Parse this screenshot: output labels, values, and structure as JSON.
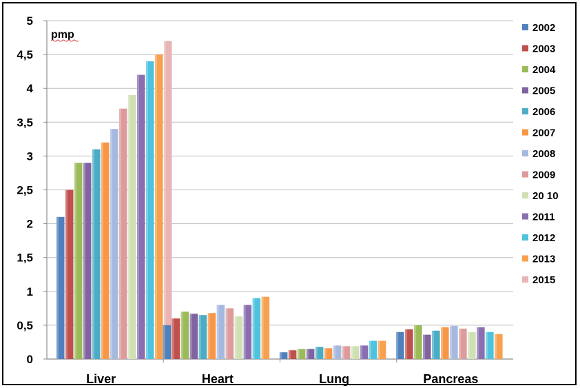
{
  "chart_data": {
    "type": "bar",
    "unit_label": "pmp",
    "categories": [
      "Liver",
      "Heart",
      "Lung",
      "Pancreas"
    ],
    "ylim": [
      0,
      5
    ],
    "yticks": [
      "0",
      "0,5",
      "1",
      "1,5",
      "2",
      "2,5",
      "3",
      "3,5",
      "4",
      "4,5",
      "5"
    ],
    "grid": true,
    "legend_position": "right",
    "series": [
      {
        "name": "2002",
        "color": "#4f81bd",
        "values": [
          2.1,
          0.5,
          0.1,
          0.4
        ]
      },
      {
        "name": "2003",
        "color": "#c0504d",
        "values": [
          2.5,
          0.6,
          0.13,
          0.44
        ]
      },
      {
        "name": "2004",
        "color": "#9bbb59",
        "values": [
          2.9,
          0.7,
          0.15,
          0.5
        ]
      },
      {
        "name": "2005",
        "color": "#8064a2",
        "values": [
          2.9,
          0.67,
          0.15,
          0.36
        ]
      },
      {
        "name": "2006",
        "color": "#4bacc6",
        "values": [
          3.1,
          0.65,
          0.18,
          0.42
        ]
      },
      {
        "name": "2007",
        "color": "#f79646",
        "values": [
          3.2,
          0.68,
          0.16,
          0.47
        ]
      },
      {
        "name": "2008",
        "color": "#a5b9e0",
        "values": [
          3.4,
          0.8,
          0.2,
          0.49
        ]
      },
      {
        "name": "2009",
        "color": "#de9b9b",
        "values": [
          3.7,
          0.75,
          0.19,
          0.45
        ]
      },
      {
        "name": "20 10",
        "color": "#cfe0b3",
        "values": [
          3.9,
          0.63,
          0.19,
          0.4
        ]
      },
      {
        "name": "2011",
        "color": "#8a6fb0",
        "values": [
          4.2,
          0.8,
          0.2,
          0.47
        ]
      },
      {
        "name": "2012",
        "color": "#4fc3de",
        "values": [
          4.4,
          0.9,
          0.27,
          0.4
        ]
      },
      {
        "name": "2013",
        "color": "#f9a04f",
        "values": [
          4.5,
          0.92,
          0.27,
          0.37
        ]
      },
      {
        "name": "2015",
        "color": "#e8b4b4",
        "values": [
          4.7,
          null,
          null,
          null
        ]
      }
    ]
  }
}
